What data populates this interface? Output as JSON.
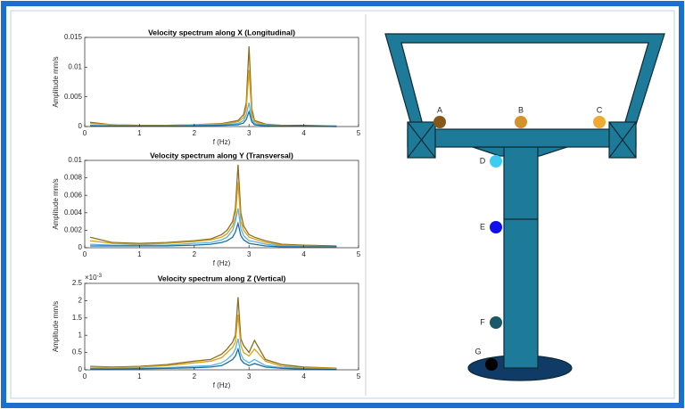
{
  "chart_data": [
    {
      "type": "line",
      "title": "Velocity spectrum along X (Longitudinal)",
      "x_label": "f (Hz)",
      "y_label": "Amplitude mm/s",
      "x": [
        0.1,
        0.5,
        1.0,
        1.5,
        2.0,
        2.5,
        2.8,
        2.9,
        2.95,
        3.0,
        3.05,
        3.1,
        3.3,
        3.6,
        4.0,
        4.6
      ],
      "xlim": [
        0,
        5
      ],
      "xticks": [
        0,
        1,
        2,
        3,
        4,
        5
      ],
      "ylim": [
        0,
        0.015
      ],
      "yticks": [
        0,
        0.005,
        0.01,
        0.015
      ],
      "series": [
        {
          "color": "#8c6d1f",
          "values": [
            0.0007,
            0.0003,
            0.0002,
            0.0002,
            0.0003,
            0.0005,
            0.001,
            0.002,
            0.004,
            0.0135,
            0.003,
            0.001,
            0.0004,
            0.0002,
            0.0002,
            0.0001
          ]
        },
        {
          "color": "#d9a21b",
          "values": [
            0.0005,
            0.0003,
            0.0002,
            0.0002,
            0.0003,
            0.0004,
            0.0008,
            0.0015,
            0.003,
            0.0095,
            0.002,
            0.0008,
            0.0003,
            0.0002,
            0.0001,
            0.0001
          ]
        },
        {
          "color": "#5bb4e0",
          "values": [
            0.0002,
            0.0001,
            0.0001,
            0.0001,
            0.0002,
            0.0003,
            0.0005,
            0.001,
            0.002,
            0.004,
            0.0012,
            0.0005,
            0.0002,
            0.0001,
            0.0001,
            0.0001
          ]
        },
        {
          "color": "#1c6e9e",
          "values": [
            0.0001,
            0.0001,
            0.0001,
            0.0001,
            0.0001,
            0.0002,
            0.0003,
            0.0006,
            0.0012,
            0.0025,
            0.0008,
            0.0003,
            0.0001,
            0.0001,
            0.0001,
            0
          ]
        }
      ]
    },
    {
      "type": "line",
      "title": "Velocity spectrum along Y (Transversal)",
      "x_label": "f (Hz)",
      "y_label": "Amplitude mm/s",
      "x": [
        0.1,
        0.5,
        1.0,
        1.5,
        2.0,
        2.3,
        2.5,
        2.6,
        2.7,
        2.75,
        2.8,
        2.85,
        2.9,
        3.0,
        3.1,
        3.3,
        3.6,
        4.0,
        4.6
      ],
      "xlim": [
        0,
        5
      ],
      "xticks": [
        0,
        1,
        2,
        3,
        4,
        5
      ],
      "ylim": [
        0,
        0.01
      ],
      "yticks": [
        0,
        0.002,
        0.004,
        0.006,
        0.008,
        0.01
      ],
      "series": [
        {
          "color": "#8c6d1f",
          "values": [
            0.0012,
            0.0006,
            0.0005,
            0.0006,
            0.0008,
            0.001,
            0.0015,
            0.002,
            0.003,
            0.0045,
            0.0095,
            0.004,
            0.0025,
            0.0015,
            0.0012,
            0.0008,
            0.0004,
            0.0003,
            0.0002
          ]
        },
        {
          "color": "#d9a21b",
          "values": [
            0.0008,
            0.0005,
            0.0004,
            0.0005,
            0.0007,
            0.0009,
            0.0012,
            0.0016,
            0.0025,
            0.0035,
            0.0075,
            0.003,
            0.002,
            0.0012,
            0.001,
            0.0006,
            0.0003,
            0.0002,
            0.0001
          ]
        },
        {
          "color": "#5bb4e0",
          "values": [
            0.0004,
            0.0003,
            0.0003,
            0.0003,
            0.0005,
            0.0006,
            0.0009,
            0.0012,
            0.002,
            0.003,
            0.0045,
            0.0022,
            0.0014,
            0.0008,
            0.0007,
            0.0004,
            0.0002,
            0.0001,
            0.0001
          ]
        },
        {
          "color": "#1c6e9e",
          "values": [
            0.0002,
            0.0002,
            0.0002,
            0.0002,
            0.0003,
            0.0004,
            0.0006,
            0.0008,
            0.0012,
            0.0018,
            0.0028,
            0.0014,
            0.0009,
            0.0005,
            0.0004,
            0.0002,
            0.0001,
            0.0001,
            0.0001
          ]
        }
      ]
    },
    {
      "type": "line",
      "title": "Velocity spectrum along Z (Vertical)",
      "x_label": "f (Hz)",
      "y_label": "Amplitude mm/s",
      "y_scale_base": "×10",
      "y_scale_exponent": "-3",
      "x": [
        0.1,
        0.5,
        1.0,
        1.5,
        2.0,
        2.3,
        2.5,
        2.6,
        2.7,
        2.75,
        2.8,
        2.85,
        2.9,
        3.0,
        3.1,
        3.3,
        3.6,
        4.0,
        4.6
      ],
      "xlim": [
        0,
        5
      ],
      "xticks": [
        0,
        1,
        2,
        3,
        4,
        5
      ],
      "ylim": [
        0,
        2.5
      ],
      "yticks": [
        0,
        0.5,
        1,
        1.5,
        2,
        2.5
      ],
      "series": [
        {
          "color": "#8c6d1f",
          "values": [
            0.1,
            0.08,
            0.1,
            0.15,
            0.25,
            0.3,
            0.45,
            0.6,
            0.8,
            1.0,
            2.1,
            0.9,
            0.7,
            0.5,
            0.85,
            0.3,
            0.15,
            0.08,
            0.05
          ]
        },
        {
          "color": "#d9a21b",
          "values": [
            0.08,
            0.06,
            0.08,
            0.12,
            0.2,
            0.25,
            0.35,
            0.5,
            0.65,
            0.8,
            1.6,
            0.7,
            0.5,
            0.4,
            0.6,
            0.25,
            0.1,
            0.06,
            0.04
          ]
        },
        {
          "color": "#5bb4e0",
          "values": [
            0.04,
            0.04,
            0.05,
            0.06,
            0.1,
            0.12,
            0.2,
            0.3,
            0.45,
            0.6,
            0.9,
            0.45,
            0.3,
            0.2,
            0.3,
            0.12,
            0.06,
            0.04,
            0.02
          ]
        },
        {
          "color": "#1c6e9e",
          "values": [
            0.02,
            0.02,
            0.03,
            0.04,
            0.06,
            0.08,
            0.12,
            0.2,
            0.3,
            0.4,
            0.6,
            0.3,
            0.2,
            0.12,
            0.18,
            0.08,
            0.04,
            0.02,
            0.01
          ]
        }
      ]
    }
  ],
  "diagram": {
    "sensors": [
      {
        "label": "A",
        "color": "#85591a"
      },
      {
        "label": "B",
        "color": "#d4922a"
      },
      {
        "label": "C",
        "color": "#f0aa30"
      },
      {
        "label": "D",
        "color": "#3ccdf0"
      },
      {
        "label": "E",
        "color": "#1010ee"
      },
      {
        "label": "F",
        "color": "#1b5868"
      },
      {
        "label": "G",
        "color": "#000000"
      }
    ]
  }
}
